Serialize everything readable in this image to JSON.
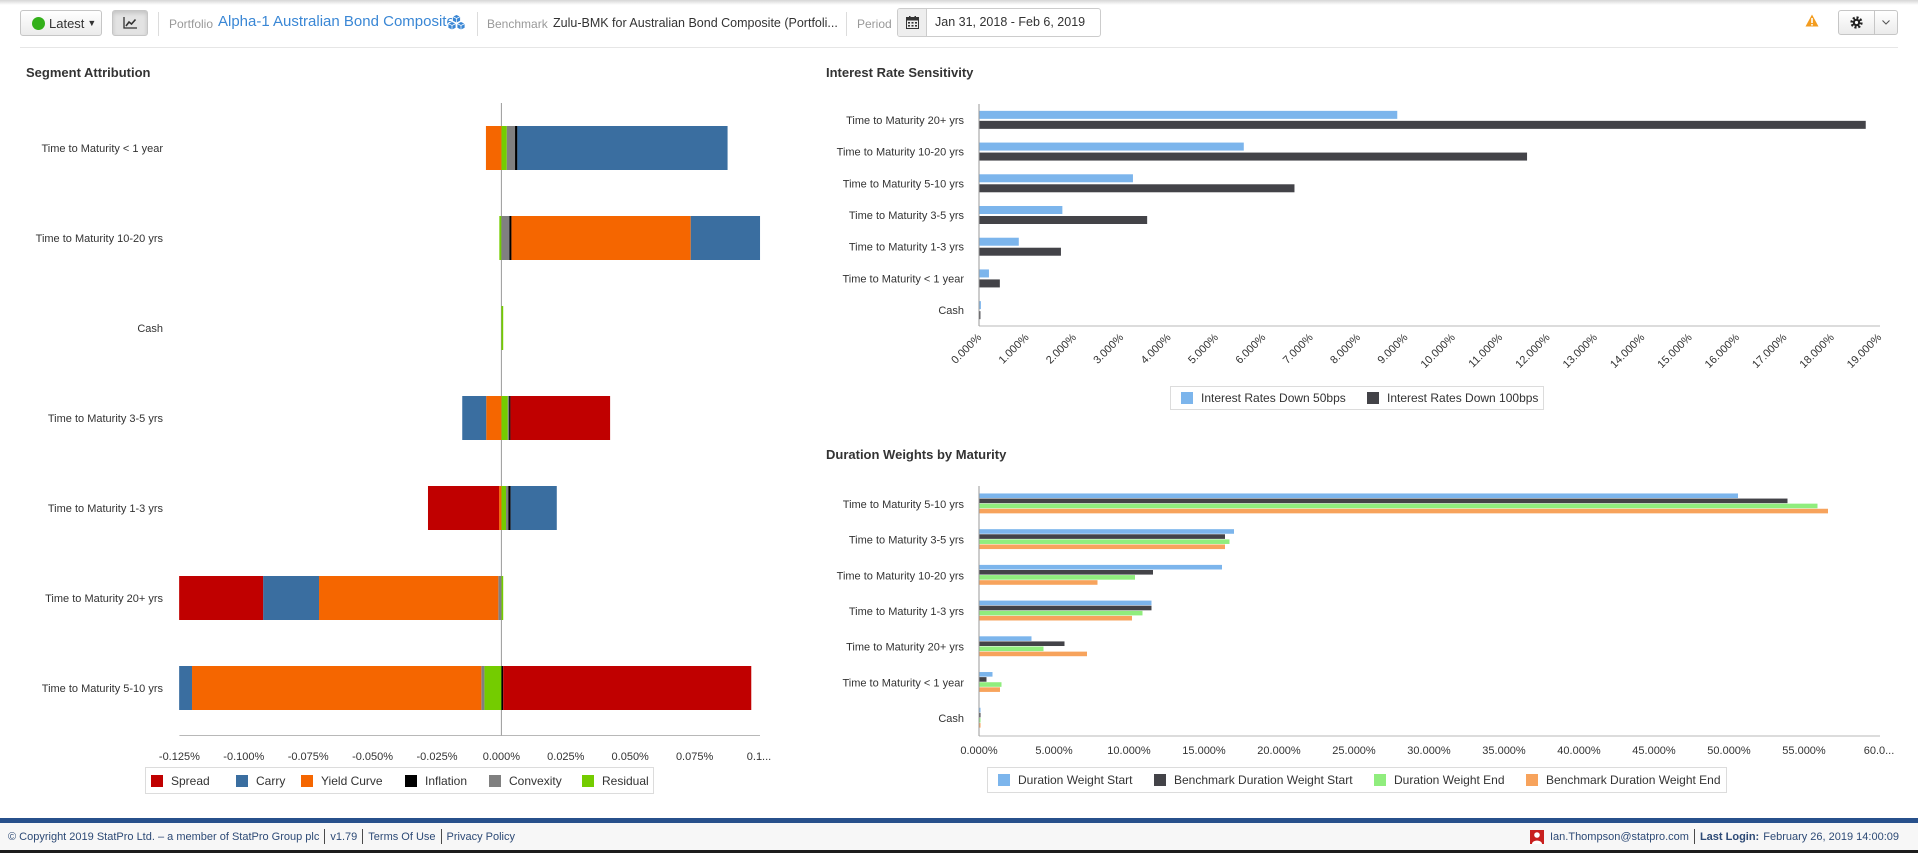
{
  "header": {
    "latest_label": "Latest",
    "status_color": "#33b01a",
    "portfolio_label": "Portfolio",
    "portfolio_name": "Alpha-1 Australian Bond Composite",
    "benchmark_label": "Benchmark",
    "benchmark_name": "Zulu-BMK for Australian Bond Composite (Portfoli...",
    "period_label": "Period",
    "period_value": "Jan 31, 2018 - Feb 6, 2019",
    "icons": {
      "status": "green-dot-icon",
      "chart_toggle": "line-chart-icon",
      "portfolio_composite": "cubes-icon",
      "period": "calendar-icon",
      "alert": "warning-icon",
      "settings": "gear-icon",
      "settings_menu": "chevron-down-icon"
    },
    "accent_color": "#3a87d5",
    "warning_color": "#f39c1f"
  },
  "chart_data": [
    {
      "type": "bar",
      "stacked": true,
      "orientation": "horizontal",
      "title": "Segment Attribution",
      "xlabel": "",
      "ylabel": "",
      "unit": "%",
      "categories": [
        "Time to Maturity < 1 year",
        "Time to Maturity 10-20 yrs",
        "Cash",
        "Time to Maturity 3-5 yrs",
        "Time to Maturity 1-3 yrs",
        "Time to Maturity 20+ yrs",
        "Time to Maturity 5-10 yrs"
      ],
      "series": [
        {
          "name": "Spread",
          "color": "#c00000",
          "values": [
            0,
            0,
            0,
            0.0387,
            -0.0276,
            -0.0326,
            0.0963
          ]
        },
        {
          "name": "Carry",
          "color": "#3a6ea0",
          "values": [
            0.0816,
            0.0269,
            0,
            -0.0093,
            0.0179,
            -0.0217,
            -0.005
          ]
        },
        {
          "name": "Yield Curve",
          "color": "#f56600",
          "values": [
            -0.006,
            0.0696,
            0,
            -0.0059,
            -0.0009,
            -0.0696,
            -0.1123
          ]
        },
        {
          "name": "Inflation",
          "color": "#000000",
          "values": [
            0.0009,
            0.0008,
            0,
            0.0005,
            0.0009,
            0,
            0.0007
          ]
        },
        {
          "name": "Convexity",
          "color": "#808080",
          "values": [
            0.0032,
            0.0031,
            0,
            0.0005,
            0.0009,
            -0.0012,
            -0.0012
          ]
        },
        {
          "name": "Residual",
          "color": "#74cc00",
          "values": [
            0.0021,
            -0.0008,
            0.0007,
            0.0025,
            0.0018,
            0.0007,
            -0.0066
          ]
        }
      ],
      "xlim": [
        -0.125,
        0.1
      ],
      "ticks": [
        {
          "value": -0.125,
          "label": "-0.125%"
        },
        {
          "value": -0.1,
          "label": "-0.100%"
        },
        {
          "value": -0.075,
          "label": "-0.075%"
        },
        {
          "value": -0.05,
          "label": "-0.050%"
        },
        {
          "value": -0.025,
          "label": "-0.025%"
        },
        {
          "value": 0,
          "label": "0.000%"
        },
        {
          "value": 0.025,
          "label": "0.025%"
        },
        {
          "value": 0.05,
          "label": "0.050%"
        },
        {
          "value": 0.075,
          "label": "0.075%"
        },
        {
          "value": 0.1,
          "label": "0.1..."
        }
      ],
      "grid": false,
      "legend_position": "bottom-left"
    },
    {
      "type": "bar",
      "stacked": false,
      "orientation": "horizontal",
      "title": "Interest Rate Sensitivity",
      "xlabel": "",
      "ylabel": "",
      "unit": "%",
      "categories": [
        "Time to Maturity 20+ yrs",
        "Time to Maturity 10-20 yrs",
        "Time to Maturity 5-10 yrs",
        "Time to Maturity 3-5 yrs",
        "Time to Maturity 1-3 yrs",
        "Time to Maturity < 1 year",
        "Cash"
      ],
      "series": [
        {
          "name": "Interest Rates Down 50bps",
          "color": "#7cb5ec",
          "values": [
            8.83,
            5.59,
            3.25,
            1.76,
            0.84,
            0.21,
            0.04
          ]
        },
        {
          "name": "Interest Rates Down 100bps",
          "color": "#434348",
          "values": [
            18.72,
            11.57,
            6.66,
            3.55,
            1.73,
            0.44,
            0.03
          ]
        }
      ],
      "xlim": [
        0,
        19
      ],
      "ticks": [
        {
          "value": 0,
          "label": "0.000%"
        },
        {
          "value": 1,
          "label": "1.000%"
        },
        {
          "value": 2,
          "label": "2.000%"
        },
        {
          "value": 3,
          "label": "3.000%"
        },
        {
          "value": 4,
          "label": "4.000%"
        },
        {
          "value": 5,
          "label": "5.000%"
        },
        {
          "value": 6,
          "label": "6.000%"
        },
        {
          "value": 7,
          "label": "7.000%"
        },
        {
          "value": 8,
          "label": "8.000%"
        },
        {
          "value": 9,
          "label": "9.000%"
        },
        {
          "value": 10,
          "label": "10.000%"
        },
        {
          "value": 11,
          "label": "11.000%"
        },
        {
          "value": 12,
          "label": "12.000%"
        },
        {
          "value": 13,
          "label": "13.000%"
        },
        {
          "value": 14,
          "label": "14.000%"
        },
        {
          "value": 15,
          "label": "15.000%"
        },
        {
          "value": 16,
          "label": "16.000%"
        },
        {
          "value": 17,
          "label": "17.000%"
        },
        {
          "value": 18,
          "label": "18.000%"
        },
        {
          "value": 19,
          "label": "19.000%"
        }
      ],
      "tick_label_rotation": "-45deg",
      "grid": false,
      "legend_position": "bottom-center"
    },
    {
      "type": "bar",
      "stacked": false,
      "orientation": "horizontal",
      "title": "Duration Weights by Maturity",
      "xlabel": "",
      "ylabel": "",
      "unit": "%",
      "categories": [
        "Time to Maturity 5-10 yrs",
        "Time to Maturity 3-5 yrs",
        "Time to Maturity 10-20 yrs",
        "Time to Maturity 1-3 yrs",
        "Time to Maturity 20+ yrs",
        "Time to Maturity < 1 year",
        "Cash"
      ],
      "series": [
        {
          "name": "Duration Weight Start",
          "color": "#7cb5ec",
          "values": [
            50.6,
            17.0,
            16.2,
            11.5,
            3.5,
            0.9,
            0.1
          ]
        },
        {
          "name": "Benchmark Duration Weight Start",
          "color": "#434348",
          "values": [
            53.9,
            16.4,
            11.6,
            11.5,
            5.7,
            0.5,
            0.1
          ]
        },
        {
          "name": "Duration Weight End",
          "color": "#90ed7d",
          "values": [
            55.9,
            16.7,
            10.4,
            10.9,
            4.3,
            1.5,
            0.1
          ]
        },
        {
          "name": "Benchmark Duration Weight End",
          "color": "#f7a35c",
          "values": [
            56.6,
            16.4,
            7.9,
            10.2,
            7.2,
            1.4,
            0.1
          ]
        }
      ],
      "xlim": [
        0,
        60
      ],
      "ticks": [
        {
          "value": 0,
          "label": "0.000%"
        },
        {
          "value": 5,
          "label": "5.000%"
        },
        {
          "value": 10,
          "label": "10.000%"
        },
        {
          "value": 15,
          "label": "15.000%"
        },
        {
          "value": 20,
          "label": "20.000%"
        },
        {
          "value": 25,
          "label": "25.000%"
        },
        {
          "value": 30,
          "label": "30.000%"
        },
        {
          "value": 35,
          "label": "35.000%"
        },
        {
          "value": 40,
          "label": "40.000%"
        },
        {
          "value": 45,
          "label": "45.000%"
        },
        {
          "value": 50,
          "label": "50.000%"
        },
        {
          "value": 55,
          "label": "55.000%"
        },
        {
          "value": 60,
          "label": "60.0..."
        }
      ],
      "grid": false,
      "legend_position": "bottom-center"
    }
  ],
  "footer": {
    "copyright": "© Copyright 2019 StatPro Ltd. – a member of StatPro Group plc",
    "version": "v1.79",
    "terms_label": "Terms Of Use",
    "privacy_label": "Privacy Policy",
    "user_icon": "user-icon",
    "user_email": "Ian.Thompson@statpro.com",
    "last_login_label": "Last Login:",
    "last_login_value": "February 26, 2019 14:00:09",
    "bar_color": "#27508b"
  }
}
